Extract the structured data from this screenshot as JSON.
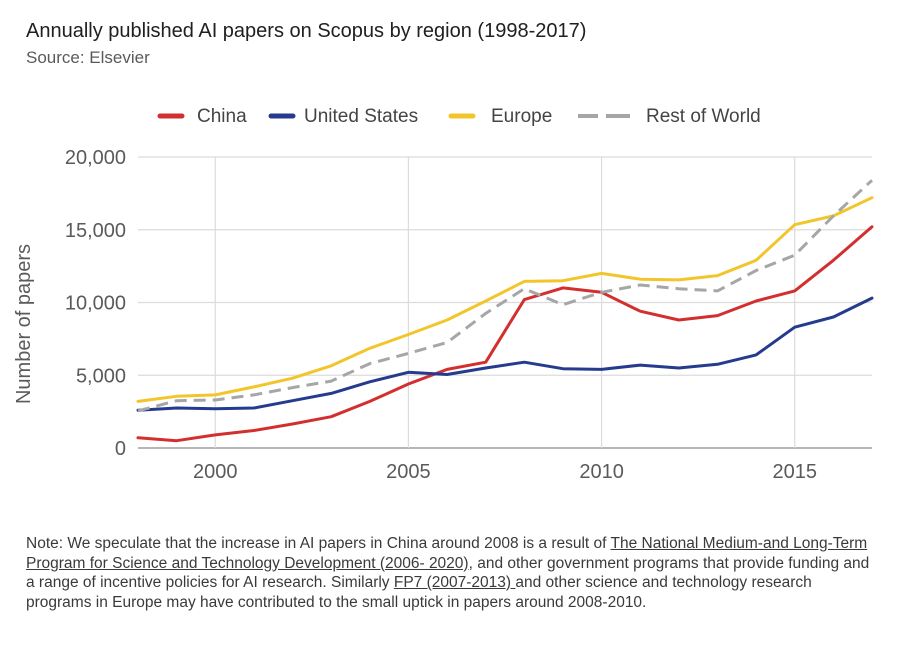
{
  "title": "Annually published AI papers on Scopus by region (1998-2017)",
  "subtitle": "Source: Elsevier",
  "note": {
    "prefix": "Note: We speculate that the increase in AI papers in China around 2008 is a result of ",
    "link1": "The National Medium-and Long-Term Program for Science and Technology Development (2006- 2020)",
    "middle": ", and other government programs that provide funding and a range of incentive policies for AI research. Similarly ",
    "link2": "FP7 (2007-2013) ",
    "suffix": "and other science and technology research programs in Europe may have contributed to the small uptick in papers around 2008-2010."
  },
  "chart_data": {
    "type": "line",
    "title": "Annually published AI papers on Scopus by region (1998-2017)",
    "subtitle": "Source: Elsevier",
    "xlabel": "",
    "ylabel": "Number of papers",
    "xlim": [
      1998,
      2017
    ],
    "ylim": [
      0,
      20000
    ],
    "x_ticks": [
      "2000",
      "2005",
      "2010",
      "2015"
    ],
    "y_ticks": [
      "0",
      "5,000",
      "10,000",
      "15,000",
      "20,000"
    ],
    "grid": true,
    "legend_position": "top",
    "x": [
      1998,
      1999,
      2000,
      2001,
      2002,
      2003,
      2004,
      2005,
      2006,
      2007,
      2008,
      2009,
      2010,
      2011,
      2012,
      2013,
      2014,
      2015,
      2016,
      2017
    ],
    "series": [
      {
        "name": "China",
        "color": "#d32f2f",
        "dashed": false,
        "values": [
          700,
          500,
          900,
          1200,
          1650,
          2150,
          3200,
          4400,
          5400,
          5900,
          10200,
          11000,
          10700,
          9400,
          8800,
          9100,
          10100,
          10800,
          12900,
          15200
        ]
      },
      {
        "name": "United States",
        "color": "#253b8e",
        "dashed": false,
        "values": [
          2600,
          2750,
          2700,
          2750,
          3250,
          3750,
          4550,
          5200,
          5050,
          5500,
          5900,
          5450,
          5400,
          5700,
          5500,
          5750,
          6400,
          8300,
          9000,
          10300
        ]
      },
      {
        "name": "Europe",
        "color": "#f2c62b",
        "dashed": false,
        "values": [
          3200,
          3550,
          3650,
          4200,
          4800,
          5650,
          6850,
          7800,
          8800,
          10100,
          11450,
          11500,
          12000,
          11600,
          11550,
          11850,
          12900,
          15350,
          15950,
          17200
        ]
      },
      {
        "name": "Rest of World",
        "color": "#a6a6a6",
        "dashed": true,
        "values": [
          2550,
          3250,
          3300,
          3650,
          4150,
          4600,
          5800,
          6500,
          7250,
          9250,
          10950,
          9850,
          10700,
          11200,
          10950,
          10800,
          12200,
          13250,
          15950,
          18400
        ]
      }
    ]
  }
}
